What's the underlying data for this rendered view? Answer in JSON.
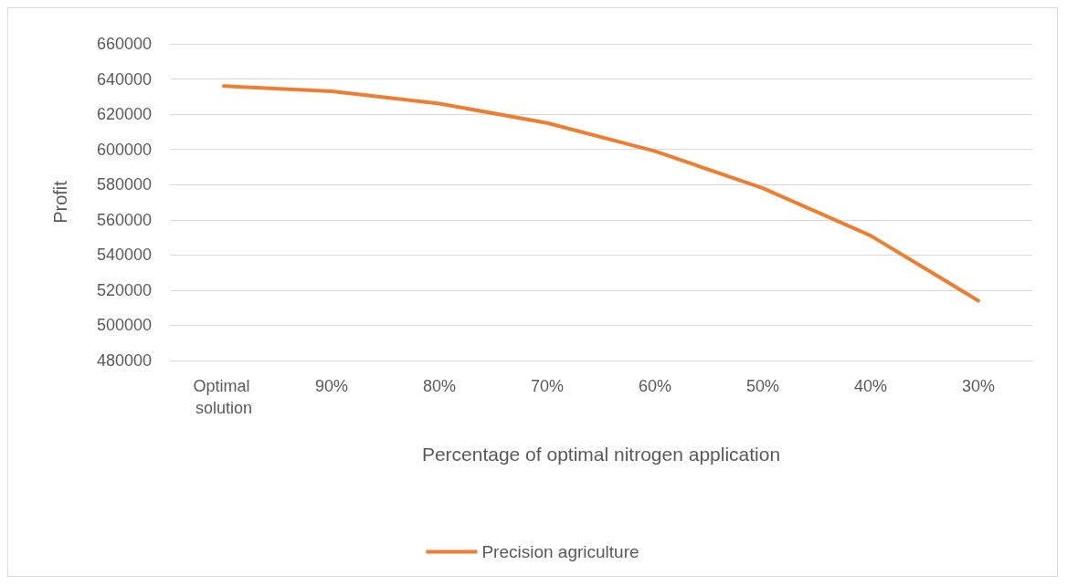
{
  "chart_data": {
    "type": "line",
    "xlabel": "Percentage of optimal nitrogen application",
    "ylabel": "Profit",
    "categories": [
      "Optimal solution",
      "90%",
      "80%",
      "70%",
      "60%",
      "50%",
      "40%",
      "30%"
    ],
    "series": [
      {
        "name": "Precision agriculture",
        "color": "#ed7d31",
        "values": [
          636000,
          633000,
          626000,
          615000,
          599000,
          578000,
          551000,
          514000
        ]
      }
    ],
    "ylim": [
      480000,
      660000
    ],
    "yticks": [
      480000,
      500000,
      520000,
      540000,
      560000,
      580000,
      600000,
      620000,
      640000,
      660000
    ],
    "grid": "y",
    "legend": "bottom",
    "marker": "none",
    "line_style": "solid"
  }
}
